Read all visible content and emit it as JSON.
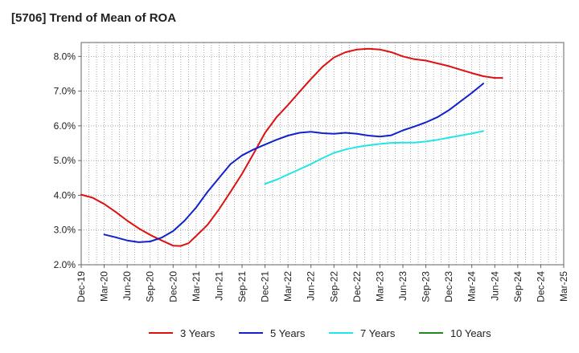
{
  "chart_data": {
    "type": "line",
    "title": "[5706]  Trend of Mean of ROA",
    "xlabel": "",
    "ylabel": "",
    "categories": [
      "Dec-19",
      "Mar-20",
      "Jun-20",
      "Sep-20",
      "Dec-20",
      "Mar-21",
      "Jun-21",
      "Sep-21",
      "Dec-21",
      "Mar-22",
      "Jun-22",
      "Sep-22",
      "Dec-22",
      "Mar-23",
      "Jun-23",
      "Sep-23",
      "Dec-23",
      "Mar-24",
      "Jun-24",
      "Sep-24",
      "Dec-24",
      "Mar-25"
    ],
    "ylim": [
      2.0,
      8.4
    ],
    "yticks": [
      "2.0%",
      "3.0%",
      "4.0%",
      "5.0%",
      "6.0%",
      "7.0%",
      "8.0%"
    ],
    "ytick_values": [
      2.0,
      3.0,
      4.0,
      5.0,
      6.0,
      7.0,
      8.0
    ],
    "grid": true,
    "legend_position": "bottom",
    "series": [
      {
        "name": "3 Years",
        "color": "#dd1111",
        "points": [
          [
            0,
            4.02
          ],
          [
            0.5,
            3.93
          ],
          [
            1,
            3.75
          ],
          [
            1.5,
            3.52
          ],
          [
            2,
            3.27
          ],
          [
            2.5,
            3.05
          ],
          [
            3,
            2.86
          ],
          [
            3.5,
            2.7
          ],
          [
            4,
            2.55
          ],
          [
            4.33,
            2.54
          ],
          [
            4.67,
            2.62
          ],
          [
            5,
            2.83
          ],
          [
            5.5,
            3.15
          ],
          [
            6,
            3.6
          ],
          [
            6.5,
            4.1
          ],
          [
            7,
            4.62
          ],
          [
            7.5,
            5.2
          ],
          [
            8,
            5.8
          ],
          [
            8.5,
            6.25
          ],
          [
            9,
            6.6
          ],
          [
            9.5,
            6.98
          ],
          [
            10,
            7.35
          ],
          [
            10.5,
            7.7
          ],
          [
            11,
            7.97
          ],
          [
            11.5,
            8.12
          ],
          [
            12,
            8.2
          ],
          [
            12.5,
            8.22
          ],
          [
            13,
            8.2
          ],
          [
            13.5,
            8.12
          ],
          [
            14,
            8.0
          ],
          [
            14.5,
            7.92
          ],
          [
            15,
            7.88
          ],
          [
            15.5,
            7.8
          ],
          [
            16,
            7.72
          ],
          [
            16.5,
            7.62
          ],
          [
            17,
            7.52
          ],
          [
            17.5,
            7.43
          ],
          [
            18,
            7.38
          ],
          [
            18.33,
            7.38
          ]
        ]
      },
      {
        "name": "5 Years",
        "color": "#1122cc",
        "points": [
          [
            1,
            2.87
          ],
          [
            1.5,
            2.79
          ],
          [
            2,
            2.7
          ],
          [
            2.5,
            2.65
          ],
          [
            3,
            2.67
          ],
          [
            3.5,
            2.78
          ],
          [
            4,
            2.97
          ],
          [
            4.5,
            3.27
          ],
          [
            5,
            3.65
          ],
          [
            5.5,
            4.1
          ],
          [
            6,
            4.5
          ],
          [
            6.5,
            4.9
          ],
          [
            7,
            5.15
          ],
          [
            7.5,
            5.32
          ],
          [
            8,
            5.46
          ],
          [
            8.5,
            5.6
          ],
          [
            9,
            5.72
          ],
          [
            9.5,
            5.8
          ],
          [
            10,
            5.83
          ],
          [
            10.5,
            5.79
          ],
          [
            11,
            5.77
          ],
          [
            11.5,
            5.8
          ],
          [
            12,
            5.77
          ],
          [
            12.5,
            5.72
          ],
          [
            13,
            5.69
          ],
          [
            13.5,
            5.73
          ],
          [
            14,
            5.87
          ],
          [
            14.5,
            5.98
          ],
          [
            15,
            6.1
          ],
          [
            15.5,
            6.25
          ],
          [
            16,
            6.45
          ],
          [
            16.5,
            6.7
          ],
          [
            17,
            6.95
          ],
          [
            17.5,
            7.22
          ]
        ]
      },
      {
        "name": "7 Years",
        "color": "#22e5e5",
        "points": [
          [
            8,
            4.33
          ],
          [
            8.5,
            4.45
          ],
          [
            9,
            4.6
          ],
          [
            9.5,
            4.75
          ],
          [
            10,
            4.9
          ],
          [
            10.5,
            5.07
          ],
          [
            11,
            5.22
          ],
          [
            11.5,
            5.32
          ],
          [
            12,
            5.39
          ],
          [
            12.5,
            5.44
          ],
          [
            13,
            5.48
          ],
          [
            13.5,
            5.51
          ],
          [
            14,
            5.52
          ],
          [
            14.5,
            5.52
          ],
          [
            15,
            5.55
          ],
          [
            15.5,
            5.6
          ],
          [
            16,
            5.66
          ],
          [
            16.5,
            5.72
          ],
          [
            17,
            5.78
          ],
          [
            17.5,
            5.85
          ]
        ]
      },
      {
        "name": "10 Years",
        "color": "#228822",
        "points": []
      }
    ]
  }
}
